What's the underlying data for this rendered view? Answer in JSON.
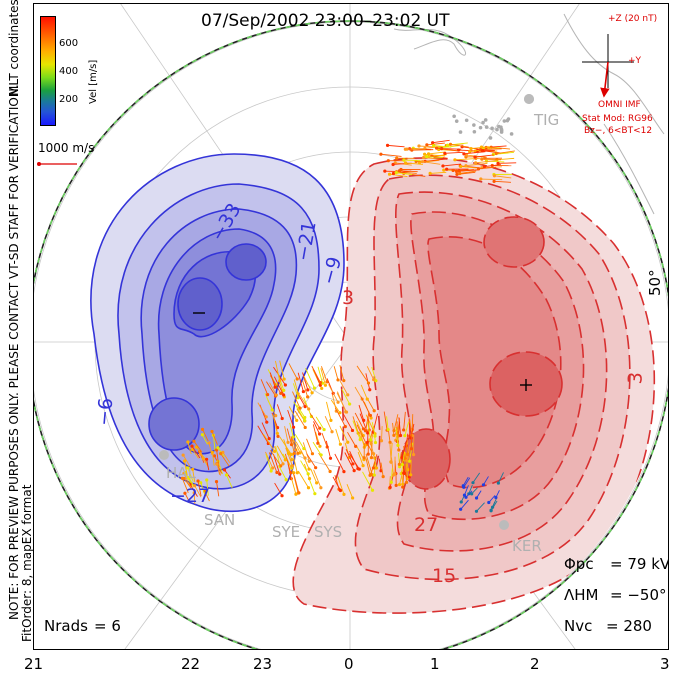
{
  "title": "07/Sep/2002 23:00–23:02 UT",
  "side_labels": {
    "mlt_coordinates": "MLT coordinates",
    "note": "NOTE: FOR PREVIEW PURPOSES ONLY. PLEASE CONTACT VT-SD STAFF FOR VERIFICATION.",
    "fit_order": "FitOrder: 8, mapEX format"
  },
  "colorbar": {
    "label": "Vel [m/s]",
    "ticks": [
      "600",
      "400",
      "200"
    ],
    "min": 0,
    "max": 800
  },
  "velocity_scale": "1000 m/s",
  "imf": {
    "z_label": "+Z (20 nT)",
    "y_label": "+Y",
    "omni": "OMNI IMF",
    "stat_mod": "Stat Mod: RG96",
    "condition": "Bz−, 6<BT<12"
  },
  "stations": [
    "TIG",
    "HAL",
    "SAN",
    "SYE",
    "SYS",
    "KER"
  ],
  "latitude_label": "50°",
  "contour_labels": [
    "−33",
    "−21",
    "−9",
    "−6",
    "−27",
    "3",
    "27",
    "15",
    "3"
  ],
  "stats": {
    "phi_pc_label": "Φpc",
    "phi_pc": "= 79 kV",
    "lambda_hm_label": "ΛHM",
    "lambda_hm": "= −50°",
    "nvc_label": "Nvc",
    "nvc": "= 280",
    "nrads_label": "Nrads",
    "nrads": "= 6"
  },
  "mlt_axis": [
    "21",
    "22",
    "23",
    "0",
    "1",
    "2",
    "3"
  ],
  "colors": {
    "negative_cell": "#3434d8",
    "positive_cell": "#d83030",
    "boundary": "#6cd060"
  }
}
